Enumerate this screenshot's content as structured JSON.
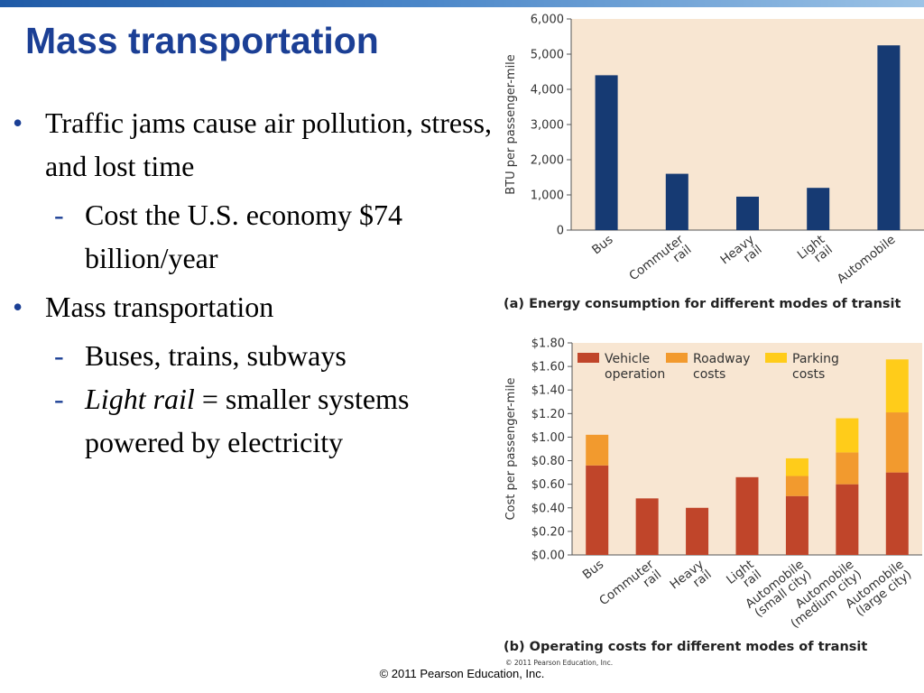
{
  "slide": {
    "title": "Mass transportation",
    "bullets": [
      {
        "level": 1,
        "mark": "•",
        "text": "Traffic jams cause air pollution, stress, and lost time"
      },
      {
        "level": 2,
        "mark": "-",
        "text": "Cost the U.S. economy $74 billion/year"
      },
      {
        "level": 1,
        "mark": "•",
        "text": "Mass transportation"
      },
      {
        "level": 2,
        "mark": "-",
        "text": "Buses, trains, subways"
      },
      {
        "level": 2,
        "mark": "-",
        "italic": "Light rail",
        "text": " = smaller systems powered by electricity"
      }
    ],
    "footer": "© 2011 Pearson Education, Inc."
  },
  "chart_data": [
    {
      "type": "bar",
      "caption": "(a) Energy consumption for different modes of transit",
      "ylabel": "BTU per passenger-mile",
      "ylim": [
        0,
        6000
      ],
      "yticks": [
        0,
        1000,
        2000,
        3000,
        4000,
        5000,
        6000
      ],
      "yticklabels": [
        "0",
        "1,000",
        "2,000",
        "3,000",
        "4,000",
        "5,000",
        "6,000"
      ],
      "categories": [
        "Bus",
        "Commuter rail",
        "Heavy rail",
        "Light rail",
        "Automobile"
      ],
      "tick_lines": [
        [
          "Bus"
        ],
        [
          "Commuter",
          "rail"
        ],
        [
          "Heavy",
          "rail"
        ],
        [
          "Light",
          "rail"
        ],
        [
          "Automobile"
        ]
      ],
      "values": [
        4400,
        1600,
        950,
        1200,
        5250
      ],
      "color": "#163a73",
      "background": "#f8e6d2"
    },
    {
      "type": "bar",
      "stacked": true,
      "caption": "(b) Operating costs for different modes of transit",
      "ylabel": "Cost per passenger-mile",
      "ylim": [
        0,
        1.8
      ],
      "yticks": [
        0,
        0.2,
        0.4,
        0.6,
        0.8,
        1.0,
        1.2,
        1.4,
        1.6,
        1.8
      ],
      "yticklabels": [
        "$0.00",
        "$0.20",
        "$0.40",
        "$0.60",
        "$0.80",
        "$1.00",
        "$1.20",
        "$1.40",
        "$1.60",
        "$1.80"
      ],
      "categories": [
        "Bus",
        "Commuter rail",
        "Heavy rail",
        "Light rail",
        "Automobile (small city)",
        "Automobile (medium city)",
        "Automobile (large city)"
      ],
      "tick_lines": [
        [
          "Bus"
        ],
        [
          "Commuter",
          "rail"
        ],
        [
          "Heavy",
          "rail"
        ],
        [
          "Light",
          "rail"
        ],
        [
          "Automobile",
          "(small city)"
        ],
        [
          "Automobile",
          "(medium city)"
        ],
        [
          "Automobile",
          "(large city)"
        ]
      ],
      "series": [
        {
          "name": "Vehicle operation",
          "legend_lines": [
            "Vehicle",
            "operation"
          ],
          "color": "#c0452a",
          "values": [
            0.76,
            0.48,
            0.4,
            0.66,
            0.5,
            0.6,
            0.7
          ]
        },
        {
          "name": "Roadway costs",
          "legend_lines": [
            "Roadway",
            "costs"
          ],
          "color": "#f29a2e",
          "values": [
            0.26,
            0,
            0,
            0,
            0.17,
            0.27,
            0.51
          ]
        },
        {
          "name": "Parking costs",
          "legend_lines": [
            "Parking",
            "costs"
          ],
          "color": "#ffcc1a",
          "values": [
            0,
            0,
            0,
            0,
            0.15,
            0.29,
            0.45
          ]
        }
      ],
      "background": "#f8e6d2",
      "copyright": "© 2011 Pearson Education, Inc."
    }
  ]
}
